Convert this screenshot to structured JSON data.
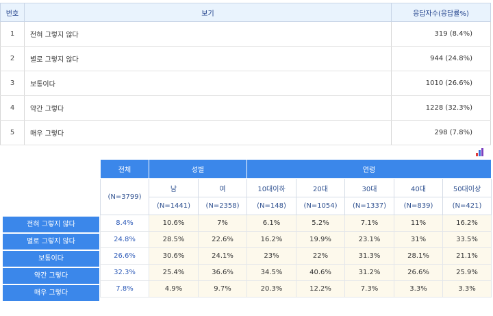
{
  "top_table": {
    "headers": {
      "num": "번호",
      "option": "보기",
      "count": "응답자수(응답률%)"
    },
    "rows": [
      {
        "num": "1",
        "label": "전혀 그렇지 않다",
        "count": "319 (8.4%)"
      },
      {
        "num": "2",
        "label": "별로 그렇지 않다",
        "count": "944 (24.8%)"
      },
      {
        "num": "3",
        "label": "보통이다",
        "count": "1010 (26.6%)"
      },
      {
        "num": "4",
        "label": "약간 그렇다",
        "count": "1228 (32.3%)"
      },
      {
        "num": "5",
        "label": "매우 그렇다",
        "count": "298 (7.8%)"
      }
    ]
  },
  "icons": {
    "chart": "bar-chart-icon",
    "colors": [
      "#e23b3b",
      "#3a6fd8",
      "#7a3fc0"
    ]
  },
  "cross_table": {
    "group_headers": {
      "total": "전체",
      "gender": "성별",
      "age": "연령"
    },
    "total_n": "(N=3799)",
    "columns": [
      {
        "label": "남",
        "n": "(N=1441)"
      },
      {
        "label": "여",
        "n": "(N=2358)"
      },
      {
        "label": "10대이하",
        "n": "(N=148)"
      },
      {
        "label": "20대",
        "n": "(N=1054)"
      },
      {
        "label": "30대",
        "n": "(N=1337)"
      },
      {
        "label": "40대",
        "n": "(N=839)"
      },
      {
        "label": "50대이상",
        "n": "(N=421)"
      }
    ],
    "rows": [
      {
        "label": "전혀 그렇지 않다",
        "total": "8.4%",
        "values": [
          "10.6%",
          "7%",
          "6.1%",
          "5.2%",
          "7.1%",
          "11%",
          "16.2%"
        ]
      },
      {
        "label": "별로 그렇지 않다",
        "total": "24.8%",
        "values": [
          "28.5%",
          "22.6%",
          "16.2%",
          "19.9%",
          "23.1%",
          "31%",
          "33.5%"
        ]
      },
      {
        "label": "보통이다",
        "total": "26.6%",
        "values": [
          "30.6%",
          "24.1%",
          "23%",
          "22%",
          "31.3%",
          "28.1%",
          "21.1%"
        ]
      },
      {
        "label": "약간 그렇다",
        "total": "32.3%",
        "values": [
          "25.4%",
          "36.6%",
          "34.5%",
          "40.6%",
          "31.2%",
          "26.6%",
          "25.9%"
        ]
      },
      {
        "label": "매우 그렇다",
        "total": "7.8%",
        "values": [
          "4.9%",
          "9.7%",
          "20.3%",
          "12.2%",
          "7.3%",
          "3.3%",
          "3.3%"
        ]
      }
    ]
  }
}
